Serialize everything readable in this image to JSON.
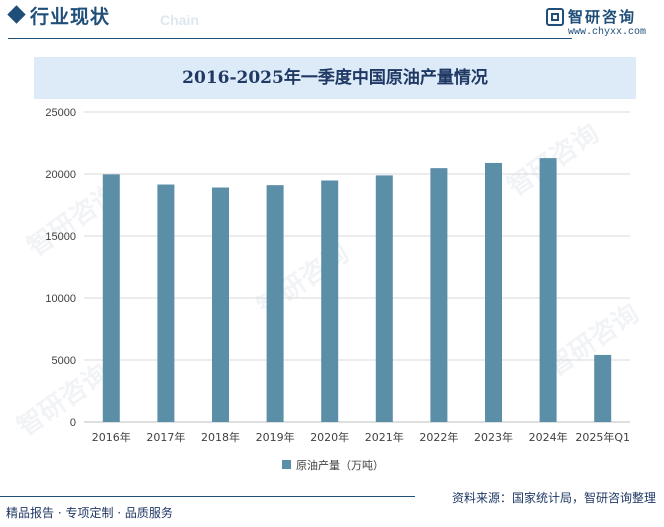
{
  "header": {
    "section_title": "行业现状",
    "section_subtitle": "Chain",
    "logo_name": "智研咨询",
    "logo_url": "www.chyxx.com"
  },
  "chart_data": {
    "type": "bar",
    "title": "2016-2025年一季度中国原油产量情况",
    "categories": [
      "2016年",
      "2017年",
      "2018年",
      "2019年",
      "2020年",
      "2021年",
      "2022年",
      "2023年",
      "2024年",
      "2025年Q1"
    ],
    "series": [
      {
        "name": "原油产量（万吨）",
        "values": [
          19969,
          19151,
          18911,
          19101,
          19477,
          19888,
          20472,
          20891,
          21282,
          5409
        ]
      }
    ],
    "ylim": [
      0,
      25000
    ],
    "yticks": [
      0,
      5000,
      10000,
      15000,
      20000,
      25000
    ],
    "grid": true,
    "legend_position": "bottom-center",
    "bar_color": "#5b8fa8"
  },
  "footer": {
    "left": "精品报告 · 专项定制 · 品质服务",
    "right": "资料来源：国家统计局，智研咨询整理"
  },
  "watermark_text": "智研咨询"
}
